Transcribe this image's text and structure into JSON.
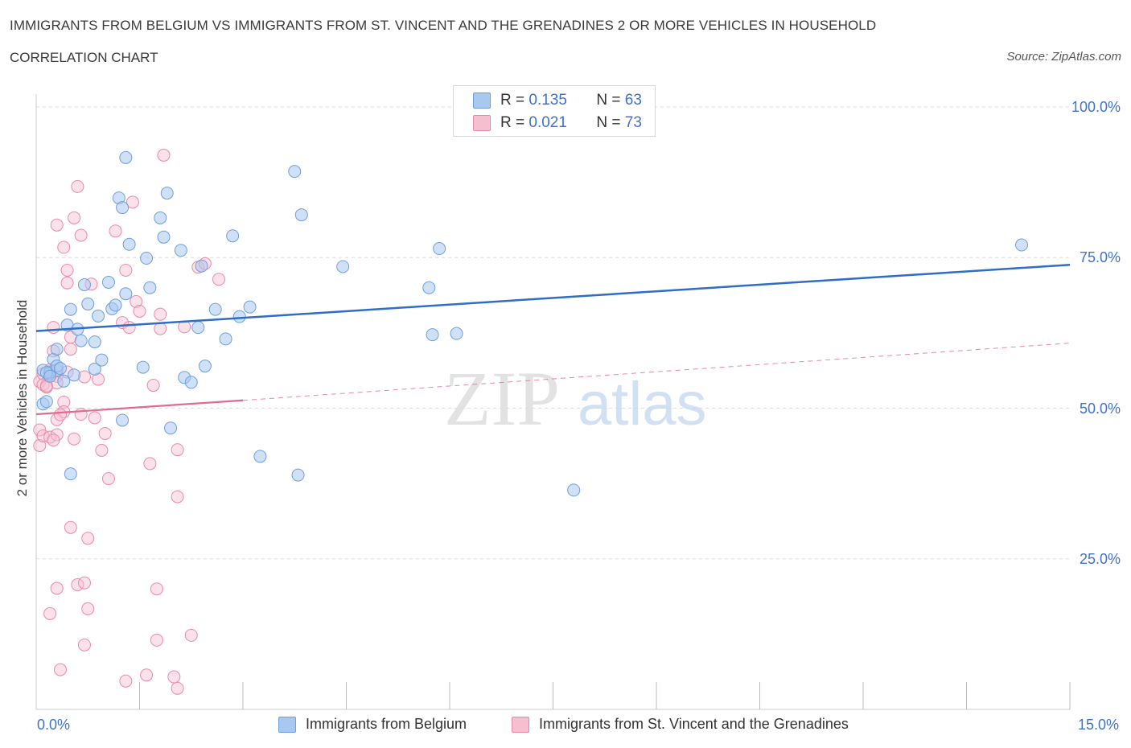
{
  "header": {
    "title": "IMMIGRANTS FROM BELGIUM VS IMMIGRANTS FROM ST. VINCENT AND THE GRENADINES 2 OR MORE VEHICLES IN HOUSEHOLD",
    "subtitle": "CORRELATION CHART",
    "source": "Source: ZipAtlas.com"
  },
  "legend": {
    "r_label": "R =",
    "n_label": "N =",
    "series": [
      {
        "r": "0.135",
        "n": "63"
      },
      {
        "r": "0.021",
        "n": "73"
      }
    ]
  },
  "watermark": {
    "zip": "ZIP",
    "atlas": "atlas"
  },
  "colors": {
    "belgium_fill": "#a9c8f0",
    "belgium_stroke": "#6d9fdc",
    "belgium_line": "#2e6dc8",
    "svg_fill": "#f6bfd0",
    "svg_stroke": "#e98aa8",
    "svg_line": "#e06a92",
    "tick_text": "#3f72c8",
    "grid": "#dddddd"
  },
  "chart_data": {
    "type": "scatter",
    "title": "IMMIGRANTS FROM BELGIUM VS IMMIGRANTS FROM ST. VINCENT AND THE GRENADINES 2 OR MORE VEHICLES IN HOUSEHOLD",
    "subtitle": "CORRELATION CHART",
    "xlabel": "",
    "ylabel": "2 or more Vehicles in Household",
    "xlim": [
      0,
      15
    ],
    "ylim": [
      0,
      100
    ],
    "x_tick_labels": [
      "0.0%",
      "15.0%"
    ],
    "y_tick_labels": [
      "100.0%",
      "75.0%",
      "50.0%",
      "25.0%"
    ],
    "y_ticks": [
      100,
      75,
      50,
      25
    ],
    "grid": true,
    "legend_placement": "top-center",
    "series": [
      {
        "name": "Immigrants from Belgium",
        "color": "#6d9fdc",
        "trend": {
          "x": [
            0,
            15
          ],
          "y": [
            62.8,
            73.8
          ],
          "style": "solid"
        },
        "points": [
          [
            0.1,
            56.3
          ],
          [
            0.1,
            50.7
          ],
          [
            0.15,
            51.1
          ],
          [
            0.2,
            55.7
          ],
          [
            0.2,
            56.0
          ],
          [
            0.25,
            58.1
          ],
          [
            0.3,
            59.8
          ],
          [
            0.3,
            56.3
          ],
          [
            0.3,
            57.0
          ],
          [
            0.35,
            56.6
          ],
          [
            0.4,
            54.5
          ],
          [
            0.45,
            63.8
          ],
          [
            0.5,
            66.4
          ],
          [
            0.5,
            39.1
          ],
          [
            0.55,
            55.5
          ],
          [
            0.6,
            63.1
          ],
          [
            0.65,
            61.2
          ],
          [
            0.7,
            70.5
          ],
          [
            0.75,
            67.3
          ],
          [
            0.85,
            61.0
          ],
          [
            0.85,
            56.5
          ],
          [
            0.9,
            65.3
          ],
          [
            0.95,
            58.0
          ],
          [
            1.05,
            70.9
          ],
          [
            1.1,
            66.5
          ],
          [
            1.15,
            67.1
          ],
          [
            1.2,
            84.9
          ],
          [
            1.25,
            83.3
          ],
          [
            1.25,
            48.0
          ],
          [
            1.3,
            69.0
          ],
          [
            1.3,
            91.6
          ],
          [
            1.35,
            77.2
          ],
          [
            1.55,
            56.8
          ],
          [
            1.6,
            74.9
          ],
          [
            1.65,
            70.0
          ],
          [
            1.8,
            81.6
          ],
          [
            1.85,
            78.4
          ],
          [
            1.9,
            85.7
          ],
          [
            1.95,
            46.7
          ],
          [
            2.1,
            76.2
          ],
          [
            2.15,
            55.1
          ],
          [
            2.25,
            54.3
          ],
          [
            2.35,
            63.4
          ],
          [
            2.4,
            73.6
          ],
          [
            2.45,
            57.0
          ],
          [
            2.6,
            66.4
          ],
          [
            2.75,
            61.5
          ],
          [
            2.85,
            78.6
          ],
          [
            2.95,
            65.2
          ],
          [
            3.1,
            66.8
          ],
          [
            3.25,
            42.0
          ],
          [
            3.75,
            89.3
          ],
          [
            3.8,
            38.9
          ],
          [
            3.85,
            82.1
          ],
          [
            4.45,
            73.5
          ],
          [
            5.7,
            70.0
          ],
          [
            5.75,
            62.2
          ],
          [
            5.85,
            76.5
          ],
          [
            6.1,
            62.4
          ],
          [
            7.8,
            36.4
          ],
          [
            14.3,
            77.1
          ],
          [
            0.15,
            55.9
          ],
          [
            0.2,
            55.3
          ]
        ]
      },
      {
        "name": "Immigrants from St. Vincent and the Grenadines",
        "color": "#e98aa8",
        "trend_solid": {
          "x": [
            0,
            3
          ],
          "y": [
            49.0,
            51.3
          ]
        },
        "trend_dashed": {
          "x": [
            3,
            15
          ],
          "y": [
            51.3,
            60.8
          ]
        },
        "points": [
          [
            0.05,
            46.4
          ],
          [
            0.05,
            43.8
          ],
          [
            0.05,
            54.4
          ],
          [
            0.1,
            55.7
          ],
          [
            0.1,
            53.9
          ],
          [
            0.1,
            45.4
          ],
          [
            0.15,
            53.5
          ],
          [
            0.2,
            56.4
          ],
          [
            0.2,
            45.2
          ],
          [
            0.2,
            15.9
          ],
          [
            0.25,
            63.4
          ],
          [
            0.25,
            59.5
          ],
          [
            0.3,
            55.3
          ],
          [
            0.3,
            45.6
          ],
          [
            0.3,
            48.1
          ],
          [
            0.3,
            20.1
          ],
          [
            0.3,
            54.2
          ],
          [
            0.3,
            80.4
          ],
          [
            0.35,
            6.6
          ],
          [
            0.4,
            76.7
          ],
          [
            0.4,
            51.0
          ],
          [
            0.4,
            49.4
          ],
          [
            0.45,
            70.8
          ],
          [
            0.45,
            56.0
          ],
          [
            0.45,
            72.9
          ],
          [
            0.5,
            59.8
          ],
          [
            0.5,
            30.2
          ],
          [
            0.5,
            61.8
          ],
          [
            0.55,
            81.6
          ],
          [
            0.55,
            44.9
          ],
          [
            0.6,
            86.8
          ],
          [
            0.6,
            20.7
          ],
          [
            0.65,
            49.0
          ],
          [
            0.65,
            78.7
          ],
          [
            0.7,
            55.2
          ],
          [
            0.7,
            21.0
          ],
          [
            0.7,
            10.7
          ],
          [
            0.75,
            28.4
          ],
          [
            0.75,
            16.7
          ],
          [
            0.8,
            70.6
          ],
          [
            0.85,
            48.4
          ],
          [
            0.9,
            54.8
          ],
          [
            0.95,
            43.0
          ],
          [
            1.0,
            45.8
          ],
          [
            1.05,
            38.3
          ],
          [
            1.15,
            79.4
          ],
          [
            1.25,
            64.2
          ],
          [
            1.3,
            4.7
          ],
          [
            1.3,
            72.9
          ],
          [
            1.35,
            63.4
          ],
          [
            1.4,
            84.2
          ],
          [
            1.45,
            67.7
          ],
          [
            1.5,
            66.1
          ],
          [
            1.6,
            5.7
          ],
          [
            1.65,
            40.8
          ],
          [
            1.7,
            53.8
          ],
          [
            1.75,
            20.0
          ],
          [
            1.75,
            11.5
          ],
          [
            1.8,
            63.2
          ],
          [
            1.8,
            65.6
          ],
          [
            1.85,
            92.0
          ],
          [
            2.0,
            5.4
          ],
          [
            2.05,
            3.5
          ],
          [
            2.05,
            43.1
          ],
          [
            2.05,
            35.3
          ],
          [
            2.15,
            63.5
          ],
          [
            2.25,
            12.3
          ],
          [
            2.35,
            73.4
          ],
          [
            2.45,
            74.0
          ],
          [
            2.65,
            71.4
          ],
          [
            0.15,
            53.7
          ],
          [
            0.35,
            48.9
          ],
          [
            0.25,
            44.7
          ]
        ]
      }
    ]
  },
  "bottom_legend": [
    "Immigrants from Belgium",
    "Immigrants from St. Vincent and the Grenadines"
  ]
}
